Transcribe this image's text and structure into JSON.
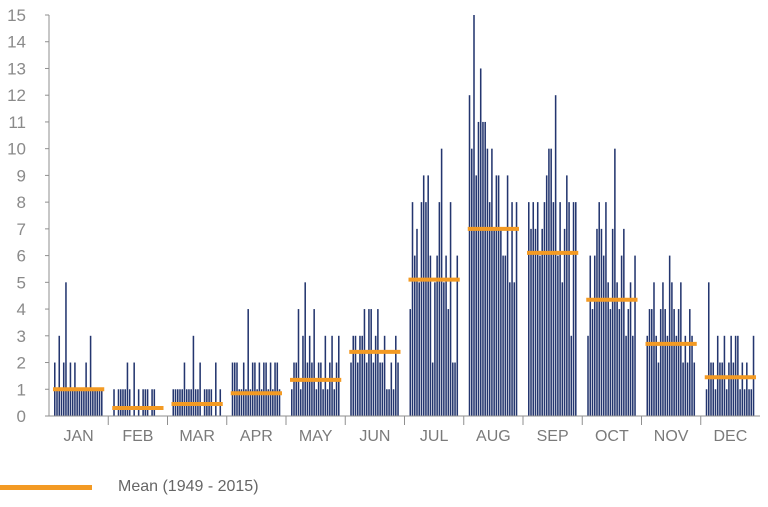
{
  "colors": {
    "bar": "#24366f",
    "mean": "#f39a23",
    "axis": "#8f8f8f",
    "text": "#7a7a7a"
  },
  "chart_data": {
    "type": "bar",
    "title": "",
    "xlabel": "",
    "ylabel": "",
    "ylim": [
      0,
      15
    ],
    "yticks": [
      0,
      1,
      2,
      3,
      4,
      5,
      6,
      7,
      8,
      9,
      10,
      11,
      12,
      13,
      14,
      15
    ],
    "grid": false,
    "legend_position": "bottom-left",
    "months": [
      {
        "label": "JAN",
        "mean": 1.0
      },
      {
        "label": "FEB",
        "mean": 0.3
      },
      {
        "label": "MAR",
        "mean": 0.45
      },
      {
        "label": "APR",
        "mean": 0.85
      },
      {
        "label": "MAY",
        "mean": 1.35
      },
      {
        "label": "JUN",
        "mean": 2.4
      },
      {
        "label": "JUL",
        "mean": 5.1
      },
      {
        "label": "AUG",
        "mean": 7.0
      },
      {
        "label": "SEP",
        "mean": 6.1
      },
      {
        "label": "OCT",
        "mean": 4.35
      },
      {
        "label": "NOV",
        "mean": 2.7
      },
      {
        "label": "DEC",
        "mean": 1.45
      }
    ],
    "series": [
      {
        "name": "Mean (1949 - 2015)",
        "kind": "mean-line"
      },
      {
        "kind": "annual-bars",
        "values": [
          [
            2,
            1,
            3,
            1,
            2,
            5,
            1,
            2,
            1,
            2,
            1,
            1,
            1,
            1,
            2,
            1,
            3,
            1,
            1,
            1,
            1,
            1
          ],
          [
            1,
            0,
            1,
            1,
            1,
            1,
            2,
            1,
            0,
            2,
            0,
            1,
            0,
            1,
            1,
            1,
            0,
            1,
            1,
            0,
            0,
            0
          ],
          [
            1,
            1,
            1,
            1,
            1,
            2,
            1,
            1,
            1,
            3,
            1,
            1,
            2,
            0,
            1,
            1,
            1,
            1,
            0,
            2,
            0,
            1
          ],
          [
            2,
            2,
            2,
            1,
            1,
            2,
            1,
            4,
            1,
            2,
            2,
            1,
            2,
            1,
            2,
            2,
            1,
            2,
            1,
            2,
            2,
            1
          ],
          [
            1,
            2,
            2,
            4,
            1,
            3,
            5,
            2,
            3,
            2,
            4,
            1,
            2,
            2,
            1,
            3,
            1,
            2,
            3,
            1,
            2,
            3
          ],
          [
            2,
            3,
            3,
            2,
            3,
            3,
            4,
            2,
            4,
            4,
            2,
            3,
            4,
            2,
            2,
            3,
            1,
            1,
            2,
            1,
            3,
            2
          ],
          [
            4,
            8,
            6,
            7,
            5,
            8,
            9,
            8,
            9,
            6,
            2,
            5,
            6,
            8,
            10,
            5,
            6,
            4,
            8,
            2,
            2,
            6
          ],
          [
            12,
            10,
            15,
            9,
            11,
            13,
            11,
            11,
            10,
            8,
            10,
            7,
            9,
            9,
            7,
            6,
            6,
            9,
            5,
            8,
            5,
            8
          ],
          [
            8,
            7,
            8,
            7,
            8,
            6,
            7,
            8,
            9,
            10,
            10,
            8,
            12,
            6,
            8,
            5,
            7,
            9,
            8,
            3,
            8,
            8
          ],
          [
            3,
            6,
            4,
            6,
            7,
            8,
            7,
            6,
            8,
            5,
            4,
            7,
            10,
            5,
            4,
            6,
            7,
            3,
            4,
            5,
            3,
            6
          ],
          [
            3,
            4,
            4,
            5,
            3,
            2,
            4,
            5,
            4,
            3,
            6,
            5,
            4,
            3,
            4,
            5,
            2,
            3,
            2,
            4,
            3,
            2
          ],
          [
            1,
            5,
            2,
            2,
            1,
            3,
            2,
            2,
            3,
            1,
            2,
            3,
            2,
            3,
            3,
            1,
            2,
            1,
            2,
            1,
            1,
            3
          ]
        ]
      }
    ]
  }
}
